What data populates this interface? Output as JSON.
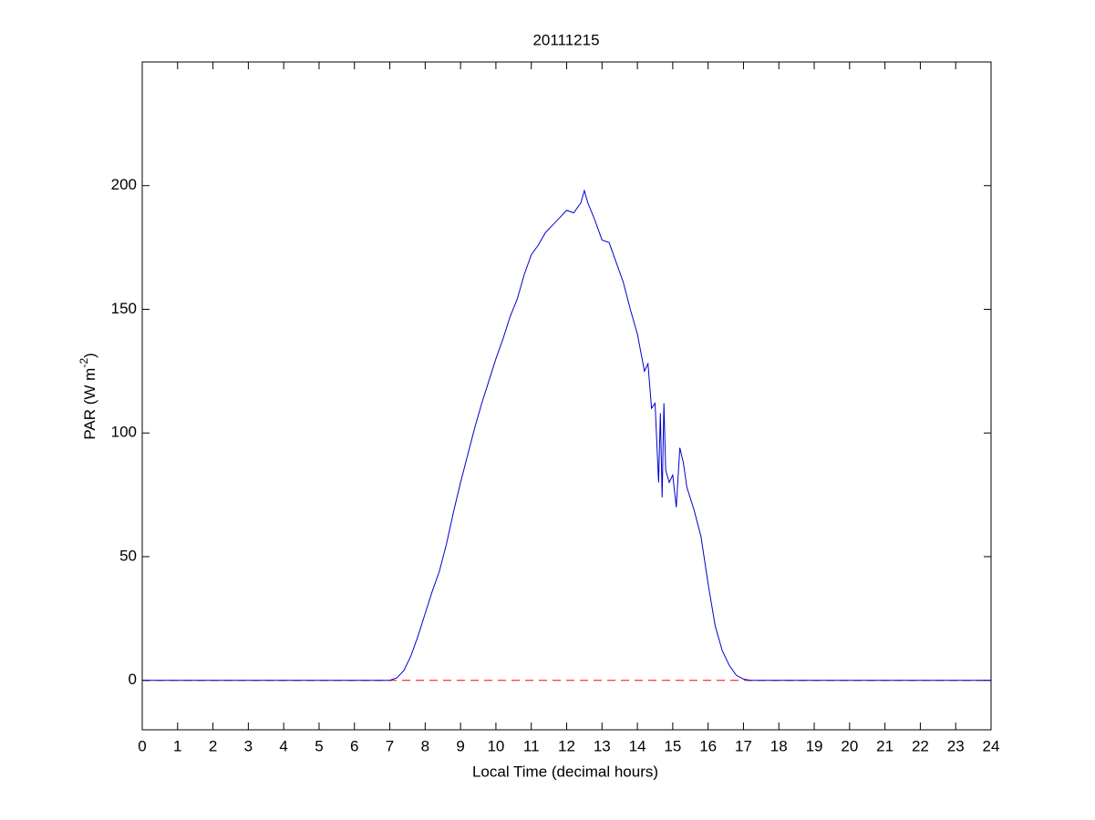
{
  "chart_data": {
    "type": "line",
    "title": "20111215",
    "xlabel": "Local Time (decimal hours)",
    "ylabel": [
      "PAR (W m",
      "-2",
      ")"
    ],
    "x": [
      0,
      7.0,
      7.2,
      7.4,
      7.6,
      7.8,
      8.0,
      8.2,
      8.4,
      8.6,
      8.8,
      9.0,
      9.2,
      9.4,
      9.6,
      9.8,
      10.0,
      10.2,
      10.4,
      10.6,
      10.8,
      11.0,
      11.2,
      11.4,
      11.6,
      11.8,
      12.0,
      12.2,
      12.4,
      12.5,
      12.6,
      12.8,
      13.0,
      13.2,
      13.4,
      13.6,
      13.8,
      14.0,
      14.2,
      14.3,
      14.4,
      14.5,
      14.6,
      14.65,
      14.7,
      14.75,
      14.8,
      14.9,
      15.0,
      15.1,
      15.2,
      15.3,
      15.4,
      15.6,
      15.8,
      16.0,
      16.2,
      16.4,
      16.6,
      16.8,
      17.0,
      17.2,
      24
    ],
    "series": [
      {
        "color": "#0000cc",
        "values": [
          0,
          0,
          1,
          4,
          10,
          18,
          27,
          36,
          44,
          55,
          68,
          80,
          91,
          102,
          112,
          121,
          130,
          138,
          147,
          154,
          164,
          172,
          176,
          181,
          184,
          187,
          190,
          189,
          193,
          198,
          193,
          186,
          178,
          177,
          169,
          161,
          150,
          140,
          125,
          128,
          110,
          112,
          80,
          108,
          74,
          112,
          85,
          80,
          83,
          70,
          94,
          88,
          78,
          69,
          58,
          39,
          22,
          12,
          6,
          2,
          0.5,
          0,
          0
        ]
      }
    ],
    "hline": {
      "value": 0,
      "color": "#ff0000",
      "dashed": true
    },
    "xlim": [
      0,
      24
    ],
    "xticks": [
      0,
      1,
      2,
      3,
      4,
      5,
      6,
      7,
      8,
      9,
      10,
      11,
      12,
      13,
      14,
      15,
      16,
      17,
      18,
      19,
      20,
      21,
      22,
      23,
      24
    ],
    "ylim": [
      -20,
      250
    ],
    "yticks": [
      0,
      50,
      100,
      150,
      200
    ]
  }
}
